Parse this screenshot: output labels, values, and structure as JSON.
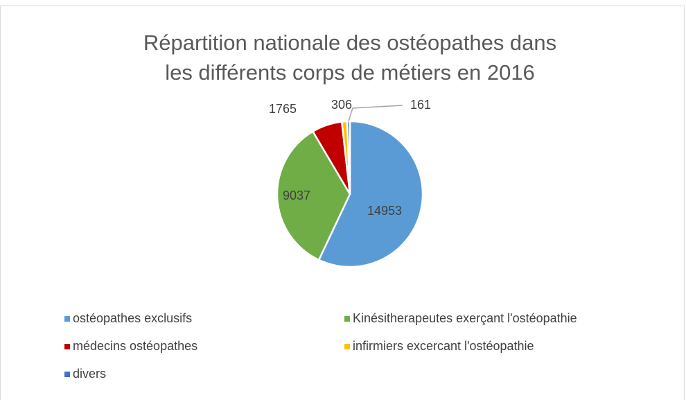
{
  "chart_data": {
    "type": "pie",
    "title": "Répartition nationale des ostéopathes dans les différents corps de métiers en 2016",
    "categories": [
      "ostéopathes exclusifs",
      "Kinésitherapeutes exerçant l'ostéopathie",
      "médecins ostéopathes",
      "infirmiers excercant l'ostéopathie",
      "divers"
    ],
    "values": [
      14953,
      9037,
      1765,
      306,
      161
    ],
    "colors": [
      "#5b9bd5",
      "#70ad47",
      "#c00000",
      "#ffc000",
      "#4472c4"
    ],
    "legend": "bottom"
  }
}
